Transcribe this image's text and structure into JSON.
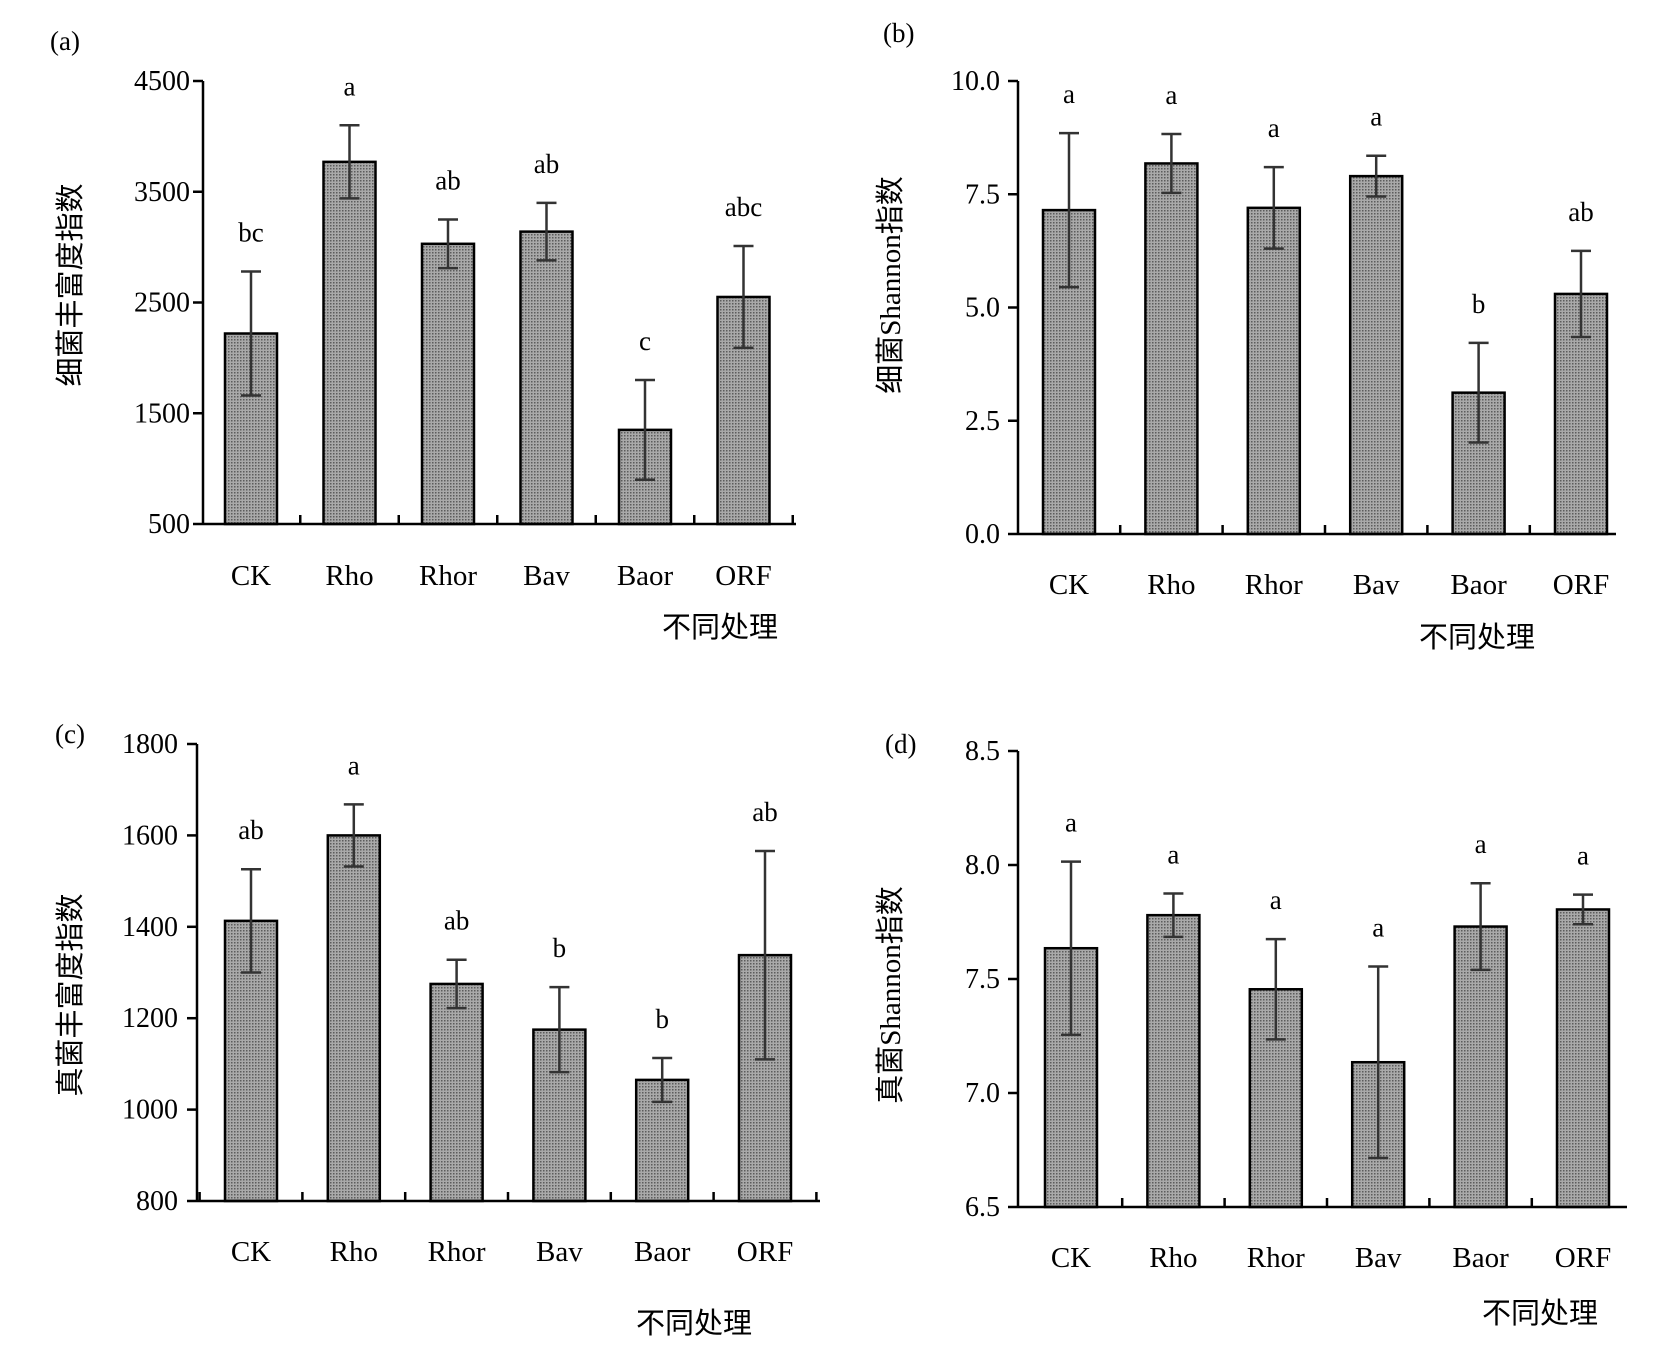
{
  "colors": {
    "bar_fill": "#8a8a8a",
    "axis": "#000000",
    "error_bar": "#333333"
  },
  "chart_data": [
    {
      "panel": "(a)",
      "type": "bar",
      "title": "",
      "xlabel": "不同处理",
      "ylabel": "细菌丰富度指数",
      "categories": [
        "CK",
        "Rho",
        "Rhor",
        "Bav",
        "Baor",
        "ORF"
      ],
      "values": [
        2220,
        3770,
        3030,
        3140,
        1350,
        2550
      ],
      "errors": [
        560,
        330,
        220,
        260,
        450,
        460
      ],
      "significance": [
        "bc",
        "a",
        "ab",
        "ab",
        "c",
        "abc"
      ],
      "ylim": [
        500,
        4500
      ],
      "yticks": [
        500,
        1500,
        2500,
        3500,
        4500
      ],
      "ytick_labels": [
        "500",
        "1500",
        "2500",
        "3500",
        "4500"
      ]
    },
    {
      "panel": "(b)",
      "type": "bar",
      "title": "",
      "xlabel": "不同处理",
      "ylabel": "细菌Shannon指数",
      "categories": [
        "CK",
        "Rho",
        "Rhor",
        "Bav",
        "Baor",
        "ORF"
      ],
      "values": [
        7.15,
        8.18,
        7.2,
        7.9,
        3.12,
        5.3
      ],
      "errors": [
        1.7,
        0.65,
        0.9,
        0.45,
        1.1,
        0.95
      ],
      "significance": [
        "a",
        "a",
        "a",
        "a",
        "b",
        "ab"
      ],
      "ylim": [
        0,
        10
      ],
      "yticks": [
        0,
        2.5,
        5,
        7.5,
        10
      ],
      "ytick_labels": [
        "0.0",
        "2.5",
        "5.0",
        "7.5",
        "10.0"
      ]
    },
    {
      "panel": "(c)",
      "type": "bar",
      "title": "",
      "xlabel": "不同处理",
      "ylabel": "真菌丰富度指数",
      "categories": [
        "CK",
        "Rho",
        "Rhor",
        "Bav",
        "Baor",
        "ORF"
      ],
      "values": [
        1413,
        1600,
        1275,
        1175,
        1065,
        1338
      ],
      "errors": [
        113,
        68,
        53,
        93,
        48,
        228
      ],
      "significance": [
        "ab",
        "a",
        "ab",
        "b",
        "b",
        "ab"
      ],
      "ylim": [
        800,
        1800
      ],
      "yticks": [
        800,
        1000,
        1200,
        1400,
        1600,
        1800
      ],
      "ytick_labels": [
        "800",
        "1000",
        "1200",
        "1400",
        "1600",
        "1800"
      ]
    },
    {
      "panel": "(d)",
      "type": "bar",
      "title": "",
      "xlabel": "不同处理",
      "ylabel": "真菌Shannon指数",
      "categories": [
        "CK",
        "Rho",
        "Rhor",
        "Bav",
        "Baor",
        "ORF"
      ],
      "values": [
        7.635,
        7.78,
        7.455,
        7.135,
        7.73,
        7.805
      ],
      "errors": [
        0.38,
        0.095,
        0.22,
        0.42,
        0.19,
        0.065
      ],
      "significance": [
        "a",
        "a",
        "a",
        "a",
        "a",
        "a"
      ],
      "ylim": [
        6.5,
        8.5
      ],
      "yticks": [
        6.5,
        7,
        7.5,
        8,
        8.5
      ],
      "ytick_labels": [
        "6.5",
        "7.0",
        "7.5",
        "8.0",
        "8.5"
      ]
    }
  ]
}
